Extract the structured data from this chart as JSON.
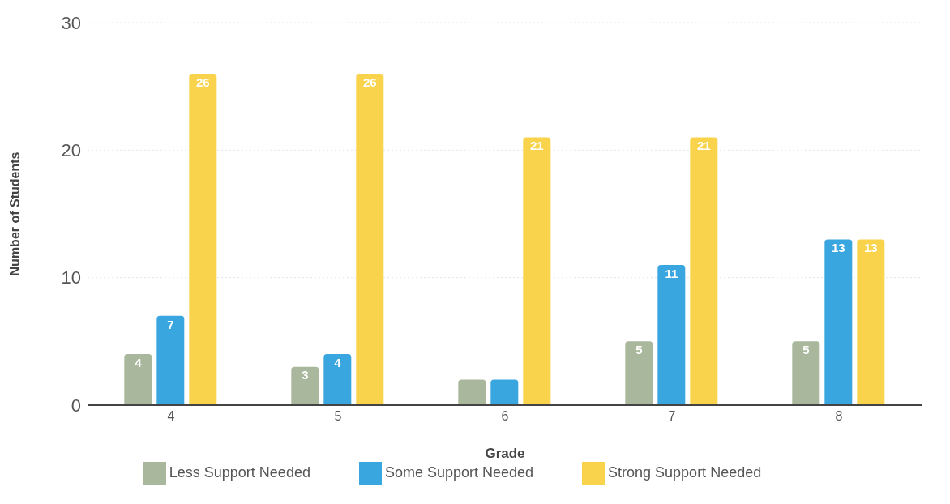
{
  "chart_data": {
    "type": "bar",
    "xlabel": "Grade",
    "ylabel": "Number of Students",
    "categories": [
      "4",
      "5",
      "6",
      "7",
      "8"
    ],
    "series": [
      {
        "name": "Less Support Needed",
        "color": "#a9b89c",
        "values": [
          4,
          3,
          2,
          5,
          5
        ],
        "value_labels": [
          "4",
          "3",
          null,
          "5",
          "5"
        ]
      },
      {
        "name": "Some Support Needed",
        "color": "#3aa6e0",
        "values": [
          7,
          4,
          2,
          11,
          13
        ],
        "value_labels": [
          "7",
          "4",
          null,
          "11",
          "13"
        ]
      },
      {
        "name": "Strong Support Needed",
        "color": "#f8d34b",
        "values": [
          26,
          26,
          21,
          21,
          13
        ],
        "value_labels": [
          "26",
          "26",
          "21",
          "21",
          "13"
        ]
      }
    ],
    "ylim": [
      0,
      30
    ],
    "yticks": [
      0,
      10,
      20,
      30
    ],
    "grid": "y",
    "legend": "bottom"
  }
}
